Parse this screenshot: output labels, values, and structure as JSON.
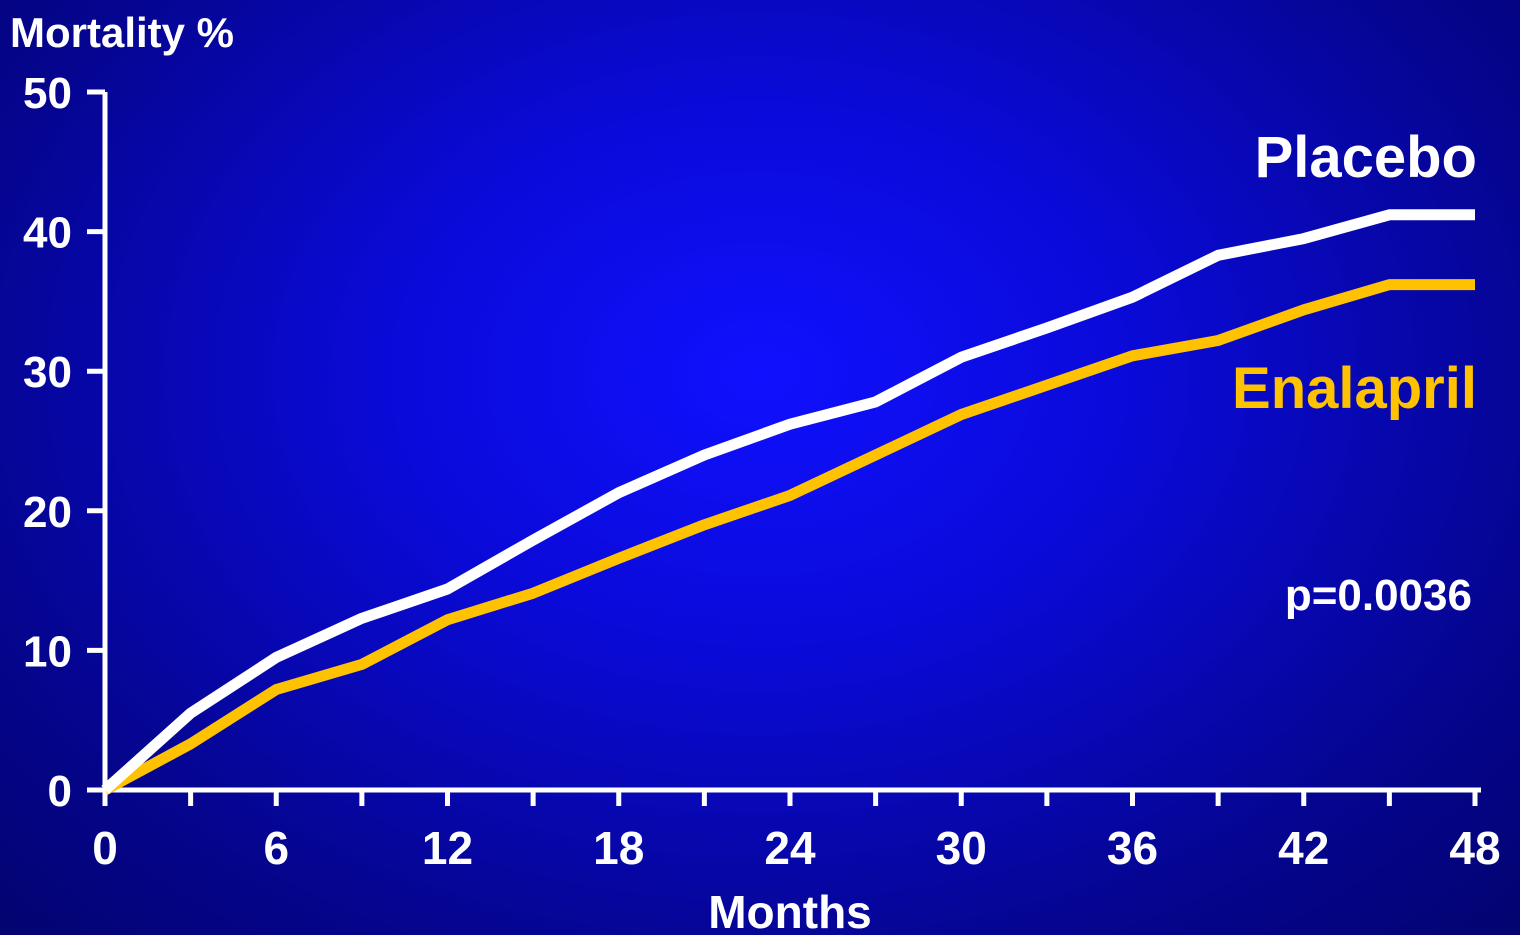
{
  "chart_data": {
    "type": "line",
    "ylabel": "Mortality %",
    "xlabel": "Months",
    "xlim": [
      0,
      48
    ],
    "ylim": [
      0,
      50
    ],
    "xticks": [
      0,
      6,
      12,
      18,
      24,
      30,
      36,
      42,
      48
    ],
    "yticks": [
      0,
      10,
      20,
      30,
      40,
      50
    ],
    "x_minor_ticks": [
      3,
      9,
      15,
      21,
      27,
      33,
      39,
      45
    ],
    "grid": false,
    "series": [
      {
        "name": "Placebo",
        "color": "#ffffff",
        "x": [
          0,
          3,
          6,
          9,
          12,
          15,
          18,
          21,
          24,
          27,
          30,
          33,
          36,
          39,
          42,
          45,
          48
        ],
        "y": [
          0,
          5.5,
          9.5,
          12.3,
          14.4,
          17.9,
          21.3,
          24.0,
          26.2,
          27.8,
          31.0,
          33.1,
          35.3,
          38.3,
          39.5,
          41.2,
          41.2
        ]
      },
      {
        "name": "Enalapril",
        "color": "#ffc200",
        "x": [
          0,
          3,
          6,
          9,
          12,
          15,
          18,
          21,
          24,
          27,
          30,
          33,
          36,
          39,
          42,
          45,
          48
        ],
        "y": [
          0,
          3.3,
          7.2,
          9.0,
          12.2,
          14.1,
          16.6,
          19.0,
          21.1,
          24.0,
          26.9,
          29.0,
          31.1,
          32.2,
          34.4,
          36.2,
          36.2
        ]
      }
    ],
    "annotations": [
      {
        "text": "p=0.0036"
      }
    ]
  }
}
